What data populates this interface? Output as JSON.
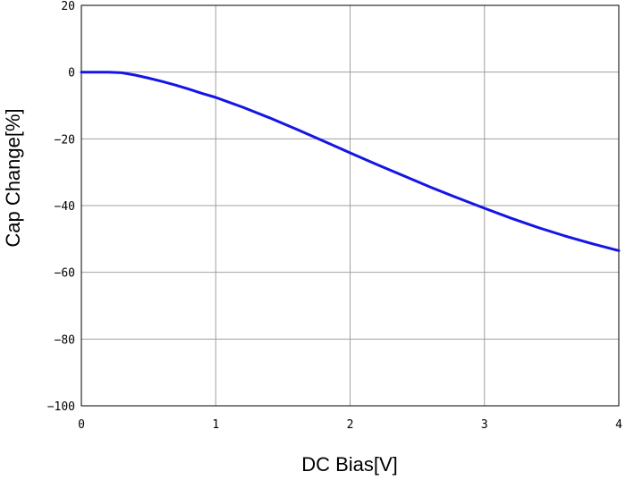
{
  "chart_data": {
    "type": "line",
    "xlabel": "DC Bias[V]",
    "ylabel": "Cap Change[%]",
    "xlim": [
      0,
      4
    ],
    "ylim": [
      -100,
      20
    ],
    "xticks": [
      0,
      1,
      2,
      3,
      4
    ],
    "yticks": [
      20,
      0,
      -20,
      -40,
      -60,
      -80,
      -100
    ],
    "xtick_labels": [
      "0",
      "1",
      "2",
      "3",
      "4"
    ],
    "ytick_labels": [
      "20",
      "0",
      "−20",
      "−40",
      "−60",
      "−80",
      "−100"
    ],
    "grid": true,
    "colors": {
      "line": "#1515e6",
      "grid": "#a0a0a0",
      "axes": "#000000"
    },
    "series": [
      {
        "x": [
          0,
          0.1,
          0.2,
          0.3,
          0.4,
          0.5,
          0.6,
          0.7,
          0.8,
          0.9,
          1.0,
          1.2,
          1.4,
          1.6,
          1.8,
          2.0,
          2.2,
          2.4,
          2.6,
          2.8,
          3.0,
          3.2,
          3.4,
          3.6,
          3.8,
          4.0
        ],
        "y": [
          0,
          0,
          0,
          -0.2,
          -0.9,
          -1.8,
          -2.8,
          -3.9,
          -5.1,
          -6.4,
          -7.6,
          -10.5,
          -13.7,
          -17.1,
          -20.6,
          -24.2,
          -27.7,
          -31.1,
          -34.5,
          -37.7,
          -40.8,
          -43.8,
          -46.6,
          -49.1,
          -51.4,
          -53.5
        ]
      }
    ]
  }
}
